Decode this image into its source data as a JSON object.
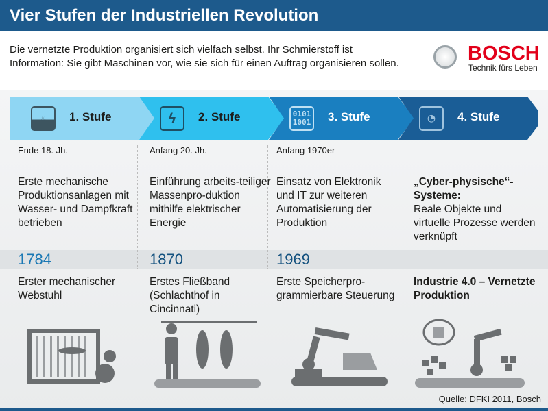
{
  "header": {
    "title": "Vier Stufen der Industriellen Revolution"
  },
  "intro": {
    "text": "Die vernetzte Produktion organisiert sich vielfach selbst. Ihr Schmierstoff ist Information: Sie gibt Maschinen vor, wie sie sich für einen Auftrag organisieren sollen."
  },
  "logo": {
    "brand": "BOSCH",
    "tagline": "Technik fürs Leben"
  },
  "stages": [
    {
      "label": "1. Stufe",
      "icon": "steam-icon",
      "color": "#8fd6f3",
      "date": "Ende 18. Jh.",
      "desc": "Erste mechanische Produktionsanlagen mit Wasser- und Dampfkraft betrieben",
      "year": "1784",
      "sub": "Erster mechanischer Webstuhl"
    },
    {
      "label": "2. Stufe",
      "icon": "lightning-icon",
      "color": "#2fc0ee",
      "date": "Anfang 20. Jh.",
      "desc": "Einführung arbeits-teiliger Massenpro-duktion mithilfe elektrischer Energie",
      "year": "1870",
      "sub": "Erstes Fließband (Schlachthof in Cincinnati)"
    },
    {
      "label": "3. Stufe",
      "icon": "binary-icon",
      "icon_text": "0101 1001",
      "color": "#1a7fc0",
      "date": "Anfang 1970er",
      "desc": "Einsatz von Elektronik und IT zur weiteren Automatisierung der Produktion",
      "year": "1969",
      "sub": "Erste Speicherpro-grammierbare Steuerung"
    },
    {
      "label": "4. Stufe",
      "icon": "wireless-icon",
      "color": "#1a5d96",
      "date": "",
      "desc_bold": "„Cyber-physische“-Systeme:",
      "desc": "Reale Objekte und virtuelle Prozesse werden verknüpft",
      "year": "",
      "sub": "Industrie 4.0 – Vernetzte Produktion"
    }
  ],
  "source": "Quelle: DFKI 2011, Bosch"
}
